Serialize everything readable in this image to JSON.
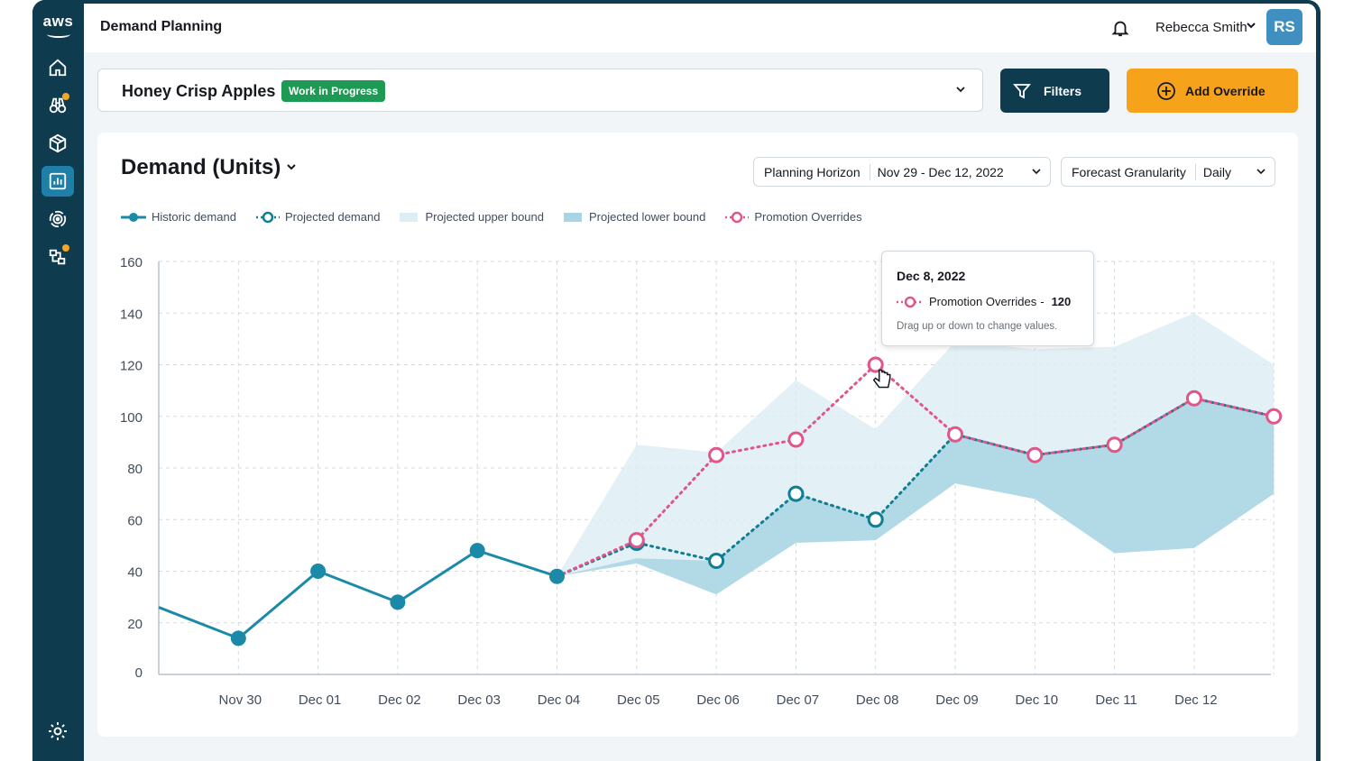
{
  "brand": {
    "logo_text": "aws"
  },
  "header": {
    "app_title": "Demand Planning",
    "user_name": "Rebecca Smith",
    "avatar_initials": "RS"
  },
  "sidebar": {
    "items": [
      {
        "icon": "home-icon"
      },
      {
        "icon": "binoculars-icon",
        "has_alert": true
      },
      {
        "icon": "package-icon"
      },
      {
        "icon": "chart-icon",
        "active": true
      },
      {
        "icon": "radar-icon"
      },
      {
        "icon": "workflow-icon",
        "has_alert": true
      }
    ],
    "footer_icon": "settings-icon"
  },
  "product": {
    "name": "Honey Crisp Apples",
    "status": "Work in Progress"
  },
  "actions": {
    "filters_label": "Filters",
    "override_label": "Add Override"
  },
  "card": {
    "title": "Demand (Units)"
  },
  "planning_horizon": {
    "label": "Planning Horizon",
    "value": "Nov 29 - Dec 12, 2022"
  },
  "granularity": {
    "label": "Forecast Granularity",
    "value": "Daily"
  },
  "legend": {
    "historic": "Historic demand",
    "projected": "Projected demand",
    "upper": "Projected upper bound",
    "lower": "Projected lower bound",
    "promo": "Promotion Overrides"
  },
  "tooltip": {
    "date": "Dec 8, 2022",
    "series": "Promotion Overrides",
    "value": "120",
    "hint": "Drag up or down to change values."
  },
  "colors": {
    "historic": "#1a8aa8",
    "projected": "#0f7e92",
    "upper": "#dceef4",
    "lower": "#a8d5e3",
    "promo": "#e0558a",
    "brand_dark": "#0f3b4f",
    "accent": "#f7a21b",
    "status": "#1d9b55"
  },
  "chart_data": {
    "type": "line",
    "categories": [
      "Nov 30",
      "Dec 01",
      "Dec 02",
      "Dec 03",
      "Dec 04",
      "Dec 05",
      "Dec 06",
      "Dec 07",
      "Dec 08",
      "Dec 09",
      "Dec 10",
      "Dec 11",
      "Dec 12"
    ],
    "yticks": [
      0,
      20,
      40,
      60,
      80,
      100,
      120,
      140,
      160
    ],
    "ylim": [
      0,
      160
    ],
    "grid": true,
    "legend_position": "top-left",
    "series": [
      {
        "name": "Historic demand",
        "style": "solid",
        "x_start": "Nov 29",
        "x": [
          "Nov 29",
          "Nov 30",
          "Dec 01",
          "Dec 02",
          "Dec 03",
          "Dec 04"
        ],
        "values": [
          26,
          14,
          40,
          28,
          48,
          38
        ]
      },
      {
        "name": "Projected demand",
        "style": "dotted",
        "x": [
          "Dec 04",
          "Dec 05",
          "Dec 06",
          "Dec 07",
          "Dec 08",
          "Dec 09",
          "Dec 10",
          "Dec 11",
          "Dec 12",
          "Dec 12+"
        ],
        "values": [
          38,
          51,
          44,
          70,
          60,
          93,
          85,
          89,
          107,
          100
        ]
      },
      {
        "name": "Promotion Overrides",
        "style": "dotted",
        "x": [
          "Dec 04",
          "Dec 05",
          "Dec 06",
          "Dec 07",
          "Dec 08",
          "Dec 09",
          "Dec 10",
          "Dec 11",
          "Dec 12",
          "Dec 12+"
        ],
        "values": [
          38,
          52,
          85,
          91,
          120,
          93,
          85,
          89,
          107,
          100
        ]
      },
      {
        "name": "Projected upper bound",
        "style": "area",
        "values_upper": [
          38,
          89,
          86,
          114,
          95,
          129,
          126,
          127,
          140,
          120
        ],
        "values_lower": [
          38,
          43,
          31,
          51,
          52,
          74,
          68,
          47,
          49,
          70
        ]
      },
      {
        "name": "Projected lower bound",
        "style": "area",
        "values_upper": [
          38,
          45,
          44,
          70,
          60,
          93,
          85,
          89,
          107,
          100
        ],
        "values_lower": [
          38,
          43,
          31,
          51,
          52,
          74,
          68,
          47,
          49,
          70
        ]
      }
    ]
  }
}
